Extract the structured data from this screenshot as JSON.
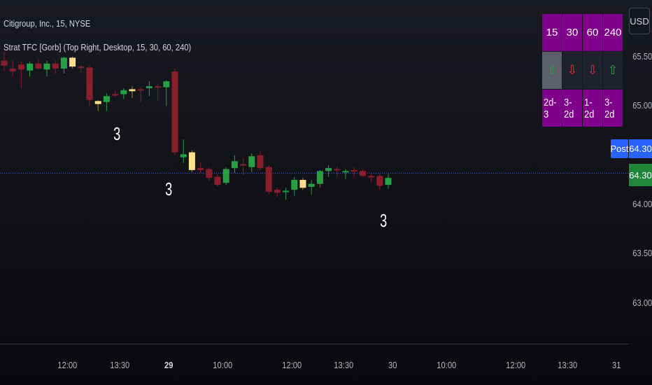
{
  "header": {
    "symbol_line": "Citigroup, Inc., 15, NYSE",
    "indicator_line": "Strat TFC [Gorb] (Top Right, Desktop, 15, 30, 60, 240)"
  },
  "currency_button": "USD",
  "tfc_table": {
    "timeframes": [
      "15",
      "30",
      "60",
      "240"
    ],
    "directions": [
      {
        "symbol": "⇧",
        "dir": "up",
        "selected": true
      },
      {
        "symbol": "⇩",
        "dir": "down",
        "selected": false
      },
      {
        "symbol": "⇩",
        "dir": "down",
        "selected": false
      },
      {
        "symbol": "⇧",
        "dir": "up",
        "selected": false
      }
    ],
    "labels": [
      "2d-3",
      "3-2d",
      "1-2d",
      "3-2d"
    ]
  },
  "price_axis": {
    "labels": [
      "65.50",
      "65.00",
      "64.00",
      "63.50",
      "63.00"
    ],
    "post_badge": "Post",
    "post_price": "64.30",
    "last_price": "64.30"
  },
  "time_axis": [
    {
      "label": "12:00",
      "bold": false
    },
    {
      "label": "13:30",
      "bold": false
    },
    {
      "label": "29",
      "bold": true
    },
    {
      "label": "10:00",
      "bold": false
    },
    {
      "label": "12:00",
      "bold": false
    },
    {
      "label": "13:30",
      "bold": false
    },
    {
      "label": "30",
      "bold": false
    },
    {
      "label": "10:00",
      "bold": false
    },
    {
      "label": "12:00",
      "bold": false
    },
    {
      "label": "13:30",
      "bold": false
    },
    {
      "label": "31",
      "bold": false
    }
  ],
  "strat_markers": [
    "3",
    "3",
    "3"
  ],
  "colors": {
    "bull": "#27a045",
    "bear": "#8a1e2c",
    "inside": "#ffe08a",
    "dotted_line": "#2962ff",
    "tfc_purple": "#80008b"
  },
  "chart_data": {
    "type": "candlestick",
    "price_range": [
      62.8,
      65.8
    ],
    "reference_price": 64.3,
    "candles": [
      {
        "o": 65.46,
        "h": 65.55,
        "l": 65.35,
        "c": 65.41,
        "k": "bear"
      },
      {
        "o": 65.38,
        "h": 65.46,
        "l": 65.3,
        "c": 65.35,
        "k": "bear"
      },
      {
        "o": 65.42,
        "h": 65.45,
        "l": 65.18,
        "c": 65.37,
        "k": "bear"
      },
      {
        "o": 65.36,
        "h": 65.45,
        "l": 65.3,
        "c": 65.43,
        "k": "bull"
      },
      {
        "o": 65.43,
        "h": 65.48,
        "l": 65.37,
        "c": 65.38,
        "k": "bear"
      },
      {
        "o": 65.37,
        "h": 65.46,
        "l": 65.3,
        "c": 65.43,
        "k": "bull"
      },
      {
        "o": 65.43,
        "h": 65.46,
        "l": 65.33,
        "c": 65.38,
        "k": "bear"
      },
      {
        "o": 65.38,
        "h": 65.5,
        "l": 65.33,
        "c": 65.49,
        "k": "bull"
      },
      {
        "o": 65.49,
        "h": 65.5,
        "l": 65.38,
        "c": 65.4,
        "k": "inside"
      },
      {
        "o": 65.4,
        "h": 65.42,
        "l": 65.34,
        "c": 65.39,
        "k": "bear"
      },
      {
        "o": 65.39,
        "h": 65.41,
        "l": 65.0,
        "c": 65.06,
        "k": "bear"
      },
      {
        "o": 65.05,
        "h": 65.06,
        "l": 64.95,
        "c": 65.02,
        "k": "inside"
      },
      {
        "o": 65.04,
        "h": 65.13,
        "l": 64.95,
        "c": 65.1,
        "k": "bull"
      },
      {
        "o": 65.12,
        "h": 65.15,
        "l": 65.09,
        "c": 65.12,
        "k": "bear"
      },
      {
        "o": 65.12,
        "h": 65.18,
        "l": 65.07,
        "c": 65.16,
        "k": "bull"
      },
      {
        "o": 65.15,
        "h": 65.2,
        "l": 65.08,
        "c": 65.17,
        "k": "inside"
      },
      {
        "o": 65.17,
        "h": 65.19,
        "l": 65.04,
        "c": 65.16,
        "k": "bear"
      },
      {
        "o": 65.18,
        "h": 65.25,
        "l": 65.1,
        "c": 65.2,
        "k": "bull"
      },
      {
        "o": 65.2,
        "h": 65.22,
        "l": 65.05,
        "c": 65.19,
        "k": "bear"
      },
      {
        "o": 65.19,
        "h": 65.26,
        "l": 65.0,
        "c": 65.25,
        "k": "bull"
      },
      {
        "o": 65.35,
        "h": 65.38,
        "l": 64.5,
        "c": 64.53,
        "k": "bear"
      },
      {
        "o": 64.51,
        "h": 64.66,
        "l": 64.42,
        "c": 64.48,
        "k": "bull"
      },
      {
        "o": 64.53,
        "h": 64.55,
        "l": 64.33,
        "c": 64.35,
        "k": "inside"
      },
      {
        "o": 64.37,
        "h": 64.43,
        "l": 64.32,
        "c": 64.35,
        "k": "bear"
      },
      {
        "o": 64.36,
        "h": 64.38,
        "l": 64.24,
        "c": 64.27,
        "k": "bear"
      },
      {
        "o": 64.28,
        "h": 64.31,
        "l": 64.18,
        "c": 64.2,
        "k": "bear"
      },
      {
        "o": 64.22,
        "h": 64.38,
        "l": 64.2,
        "c": 64.36,
        "k": "bull"
      },
      {
        "o": 64.37,
        "h": 64.5,
        "l": 64.32,
        "c": 64.44,
        "k": "bull"
      },
      {
        "o": 64.4,
        "h": 64.47,
        "l": 64.3,
        "c": 64.41,
        "k": "bear"
      },
      {
        "o": 64.38,
        "h": 64.52,
        "l": 64.33,
        "c": 64.49,
        "k": "bull"
      },
      {
        "o": 64.5,
        "h": 64.54,
        "l": 64.35,
        "c": 64.37,
        "k": "bear"
      },
      {
        "o": 64.38,
        "h": 64.4,
        "l": 64.1,
        "c": 64.13,
        "k": "bear"
      },
      {
        "o": 64.15,
        "h": 64.17,
        "l": 64.08,
        "c": 64.12,
        "k": "bear"
      },
      {
        "o": 64.13,
        "h": 64.17,
        "l": 64.05,
        "c": 64.14,
        "k": "bull"
      },
      {
        "o": 64.15,
        "h": 64.28,
        "l": 64.09,
        "c": 64.25,
        "k": "bull"
      },
      {
        "o": 64.25,
        "h": 64.27,
        "l": 64.15,
        "c": 64.17,
        "k": "inside"
      },
      {
        "o": 64.18,
        "h": 64.25,
        "l": 64.1,
        "c": 64.21,
        "k": "bull"
      },
      {
        "o": 64.21,
        "h": 64.35,
        "l": 64.17,
        "c": 64.34,
        "k": "bull"
      },
      {
        "o": 64.34,
        "h": 64.4,
        "l": 64.28,
        "c": 64.37,
        "k": "bull"
      },
      {
        "o": 64.36,
        "h": 64.39,
        "l": 64.28,
        "c": 64.35,
        "k": "bear"
      },
      {
        "o": 64.33,
        "h": 64.36,
        "l": 64.26,
        "c": 64.34,
        "k": "bull"
      },
      {
        "o": 64.35,
        "h": 64.38,
        "l": 64.28,
        "c": 64.34,
        "k": "bear"
      },
      {
        "o": 64.34,
        "h": 64.36,
        "l": 64.28,
        "c": 64.29,
        "k": "bear"
      },
      {
        "o": 64.29,
        "h": 64.31,
        "l": 64.23,
        "c": 64.29,
        "k": "bear"
      },
      {
        "o": 64.29,
        "h": 64.31,
        "l": 64.15,
        "c": 64.19,
        "k": "bear"
      },
      {
        "o": 64.2,
        "h": 64.31,
        "l": 64.16,
        "c": 64.27,
        "k": "bull"
      }
    ]
  }
}
